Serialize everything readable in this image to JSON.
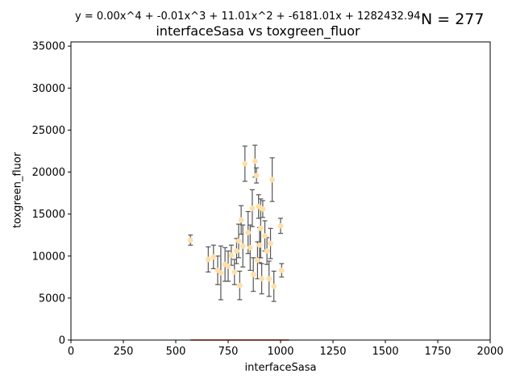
{
  "header": {
    "equation": "y = 0.00x^4 + -0.01x^3 + 11.01x^2 + -6181.01x + 1282432.94",
    "n_label": "N = 277"
  },
  "chart_data": {
    "type": "scatter",
    "title": "interfaceSasa vs toxgreen_fluor",
    "xlabel": "interfaceSasa",
    "ylabel": "toxgreen_fluor",
    "xlim": [
      0,
      2000
    ],
    "ylim": [
      0,
      35500
    ],
    "xticks": [
      0,
      250,
      500,
      750,
      1000,
      1250,
      1500,
      1750,
      2000
    ],
    "yticks": [
      0,
      5000,
      10000,
      15000,
      20000,
      25000,
      30000,
      35000
    ],
    "grid": false,
    "point_color": "#ffdfa8",
    "errorbar_color": "#555555",
    "fit_color": "#ff0000",
    "points": [
      {
        "x": 570,
        "y": 11900,
        "err": 600
      },
      {
        "x": 655,
        "y": 9600,
        "err": 1500
      },
      {
        "x": 680,
        "y": 9900,
        "err": 1400
      },
      {
        "x": 700,
        "y": 8300,
        "err": 1700
      },
      {
        "x": 715,
        "y": 8000,
        "err": 3200
      },
      {
        "x": 735,
        "y": 9000,
        "err": 2000
      },
      {
        "x": 750,
        "y": 8800,
        "err": 1800
      },
      {
        "x": 765,
        "y": 10100,
        "err": 1200
      },
      {
        "x": 780,
        "y": 8100,
        "err": 1500
      },
      {
        "x": 790,
        "y": 10600,
        "err": 1500
      },
      {
        "x": 800,
        "y": 11800,
        "err": 2000
      },
      {
        "x": 805,
        "y": 6500,
        "err": 1700
      },
      {
        "x": 812,
        "y": 14300,
        "err": 1700
      },
      {
        "x": 820,
        "y": 11200,
        "err": 2500
      },
      {
        "x": 830,
        "y": 21000,
        "err": 2100
      },
      {
        "x": 845,
        "y": 12800,
        "err": 2500
      },
      {
        "x": 855,
        "y": 11000,
        "err": 2700
      },
      {
        "x": 865,
        "y": 15700,
        "err": 2200
      },
      {
        "x": 870,
        "y": 7800,
        "err": 2000
      },
      {
        "x": 878,
        "y": 21300,
        "err": 1900
      },
      {
        "x": 885,
        "y": 19600,
        "err": 900
      },
      {
        "x": 890,
        "y": 9500,
        "err": 2200
      },
      {
        "x": 895,
        "y": 15900,
        "err": 1400
      },
      {
        "x": 900,
        "y": 11300,
        "err": 2100
      },
      {
        "x": 905,
        "y": 13300,
        "err": 3500
      },
      {
        "x": 910,
        "y": 7300,
        "err": 1800
      },
      {
        "x": 915,
        "y": 15600,
        "err": 1000
      },
      {
        "x": 925,
        "y": 12400,
        "err": 1800
      },
      {
        "x": 935,
        "y": 10600,
        "err": 1600
      },
      {
        "x": 945,
        "y": 7300,
        "err": 2100
      },
      {
        "x": 952,
        "y": 11500,
        "err": 1800
      },
      {
        "x": 960,
        "y": 19100,
        "err": 2600
      },
      {
        "x": 968,
        "y": 6400,
        "err": 1800
      },
      {
        "x": 1000,
        "y": 13600,
        "err": 900
      },
      {
        "x": 1005,
        "y": 8300,
        "err": 800
      }
    ],
    "fit_x": [
      570,
      1040,
      658,
      790,
      870,
      930,
      975,
      1040,
      870,
      800,
      900,
      970,
      1000,
      660,
      760,
      840,
      880,
      570
    ]
  }
}
